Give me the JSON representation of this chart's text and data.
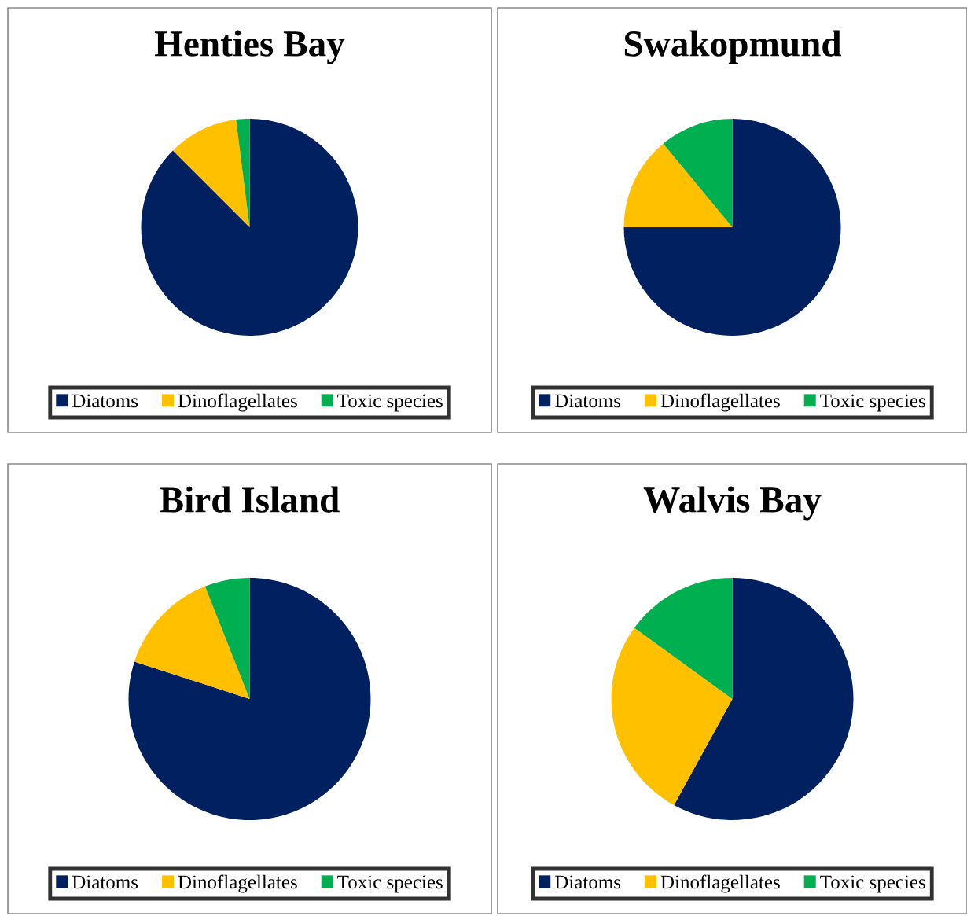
{
  "chart_data": [
    {
      "type": "pie",
      "title": "Henties Bay",
      "categories": [
        "Diatoms",
        "Dinoflagellates",
        "Toxic species"
      ],
      "values": [
        87.5,
        10.5,
        2
      ],
      "colors": [
        "#002060",
        "#ffc000",
        "#00b050"
      ],
      "legend": "bottom"
    },
    {
      "type": "pie",
      "title": "Swakopmund",
      "categories": [
        "Diatoms",
        "Dinoflagellates",
        "Toxic species"
      ],
      "values": [
        75,
        14,
        11
      ],
      "colors": [
        "#002060",
        "#ffc000",
        "#00b050"
      ],
      "legend": "bottom"
    },
    {
      "type": "pie",
      "title": "Bird Island",
      "categories": [
        "Diatoms",
        "Dinoflagellates",
        "Toxic species"
      ],
      "values": [
        80,
        14,
        6
      ],
      "colors": [
        "#002060",
        "#ffc000",
        "#00b050"
      ],
      "legend": "bottom"
    },
    {
      "type": "pie",
      "title": "Walvis Bay",
      "categories": [
        "Diatoms",
        "Dinoflagellates",
        "Toxic species"
      ],
      "values": [
        58,
        27,
        15
      ],
      "colors": [
        "#002060",
        "#ffc000",
        "#00b050"
      ],
      "legend": "bottom"
    }
  ]
}
